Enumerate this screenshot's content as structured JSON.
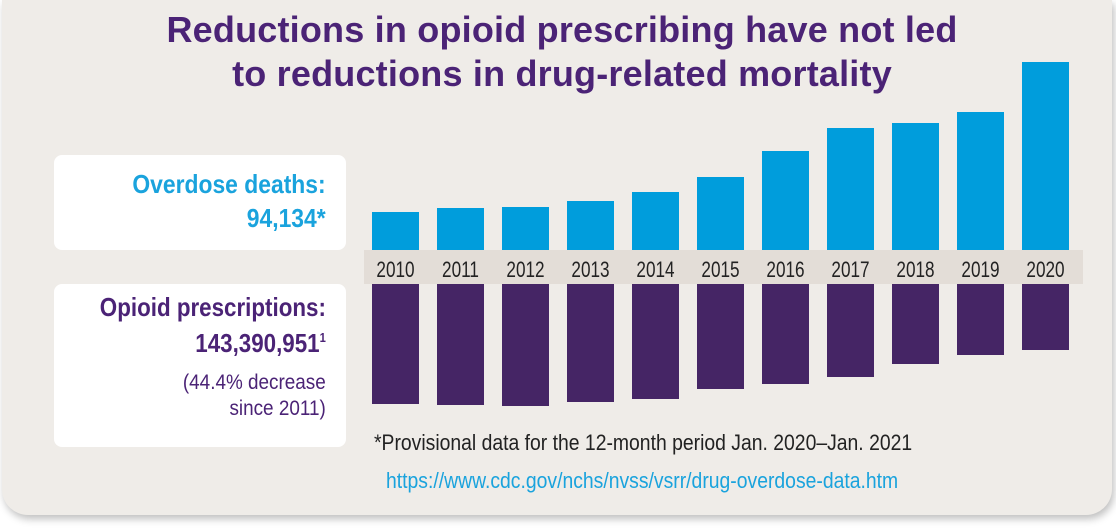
{
  "title": {
    "line1": "Reductions in opioid prescribing have not led",
    "line2": "to reductions in drug-related mortality"
  },
  "deaths_panel": {
    "label": "Overdose deaths:",
    "value": "94,134*"
  },
  "prescriptions_panel": {
    "label": "Opioid prescriptions:",
    "value": "143,390,951",
    "footnote_marker": "1",
    "note_line1": "(44.4% decrease",
    "note_line2": "since 2011)"
  },
  "footnote": "*Provisional data for the 12-month period Jan. 2020–Jan. 2021",
  "link": "https://www.cdc.gov/nchs/nvss/vsrr/drug-overdose-data.htm",
  "colors": {
    "deaths": "#009ddc",
    "prescriptions": "#452565",
    "year_band": "#e3ddd7",
    "title": "#4b2376"
  },
  "chart_data": {
    "type": "bar",
    "title": "Reductions in opioid prescribing have not led to reductions in drug-related mortality",
    "categories": [
      "2010",
      "2011",
      "2012",
      "2013",
      "2014",
      "2015",
      "2016",
      "2017",
      "2018",
      "2019",
      "2020"
    ],
    "series": [
      {
        "name": "Overdose deaths",
        "direction": "up",
        "relative_scale": true,
        "values": [
          38,
          42,
          43,
          49,
          58,
          73,
          99,
          122,
          127,
          138,
          188
        ]
      },
      {
        "name": "Opioid prescriptions",
        "direction": "down",
        "relative_scale": true,
        "values": [
          120,
          121,
          122,
          118,
          115,
          105,
          100,
          93,
          80,
          71,
          66
        ]
      }
    ],
    "xlabel": "",
    "ylabel": "",
    "legend": "left"
  }
}
